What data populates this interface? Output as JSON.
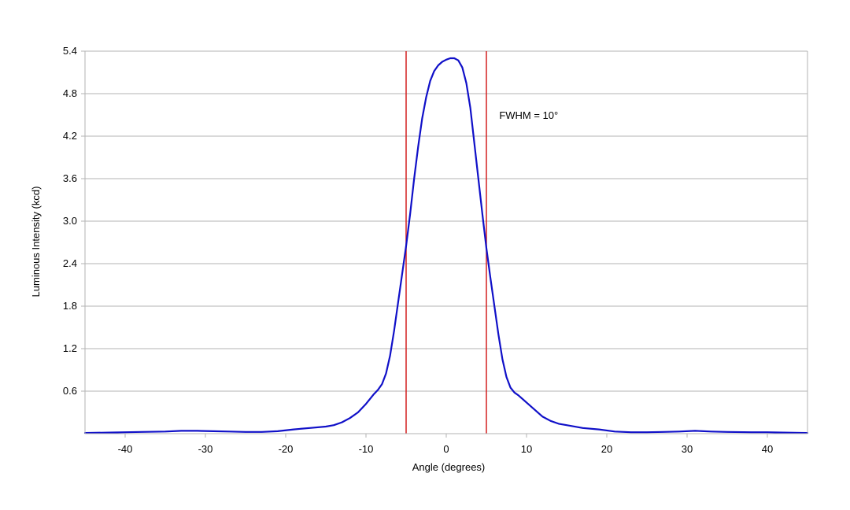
{
  "chart_data": {
    "type": "line",
    "title": "",
    "xlabel": "Angle (degrees)",
    "ylabel": "Luminous Intensity (kcd)",
    "xlim": [
      -45,
      45
    ],
    "ylim": [
      0,
      5.4
    ],
    "x_ticks": [
      -40,
      -30,
      -20,
      -10,
      0,
      10,
      20,
      30,
      40
    ],
    "x_tick_labels": [
      "-40",
      "-30",
      "-20",
      "-10",
      "0",
      "10",
      "20",
      "30",
      "40"
    ],
    "y_ticks": [
      0.6,
      1.2,
      1.8,
      2.4,
      3.0,
      3.6,
      4.2,
      4.8,
      5.4
    ],
    "y_tick_labels": [
      "0.6",
      "1.2",
      "1.8",
      "2.4",
      "3.0",
      "3.6",
      "4.2",
      "4.8",
      "5.4"
    ],
    "grid": "horizontal",
    "legend": "none",
    "series": [
      {
        "color": "#1010c8",
        "x": [
          -45,
          -42,
          -40,
          -38,
          -35,
          -33,
          -31,
          -29,
          -27,
          -25,
          -23,
          -21,
          -19,
          -17,
          -15,
          -14,
          -13,
          -12,
          -11,
          -10,
          -9,
          -8.5,
          -8,
          -7.5,
          -7,
          -6.5,
          -6,
          -5.5,
          -5,
          -4.5,
          -4,
          -3.5,
          -3,
          -2.5,
          -2,
          -1.5,
          -1,
          -0.5,
          0,
          0.5,
          1,
          1.5,
          2,
          2.5,
          3,
          3.5,
          4,
          4.5,
          5,
          5.5,
          6,
          6.5,
          7,
          7.5,
          8,
          8.5,
          9,
          10,
          11,
          12,
          13,
          14,
          15,
          17,
          19,
          21,
          23,
          25,
          27,
          29,
          31,
          33,
          35,
          38,
          40,
          42,
          45
        ],
        "y": [
          0.01,
          0.015,
          0.02,
          0.025,
          0.03,
          0.04,
          0.04,
          0.035,
          0.03,
          0.025,
          0.025,
          0.035,
          0.06,
          0.08,
          0.1,
          0.12,
          0.16,
          0.22,
          0.3,
          0.42,
          0.56,
          0.62,
          0.7,
          0.85,
          1.1,
          1.45,
          1.85,
          2.25,
          2.65,
          3.1,
          3.6,
          4.05,
          4.45,
          4.75,
          4.98,
          5.12,
          5.2,
          5.25,
          5.28,
          5.3,
          5.3,
          5.27,
          5.17,
          4.95,
          4.6,
          4.1,
          3.6,
          3.1,
          2.62,
          2.2,
          1.8,
          1.4,
          1.05,
          0.8,
          0.65,
          0.58,
          0.54,
          0.44,
          0.34,
          0.24,
          0.18,
          0.14,
          0.12,
          0.08,
          0.06,
          0.03,
          0.02,
          0.02,
          0.025,
          0.03,
          0.04,
          0.03,
          0.025,
          0.02,
          0.02,
          0.015,
          0.01
        ]
      }
    ],
    "vertical_lines": [
      {
        "x": -5,
        "color": "#d42020"
      },
      {
        "x": 5,
        "color": "#d42020"
      }
    ],
    "annotations": [
      {
        "text": "FWHM = 10°",
        "x": 6.6,
        "y": 4.5
      }
    ]
  }
}
